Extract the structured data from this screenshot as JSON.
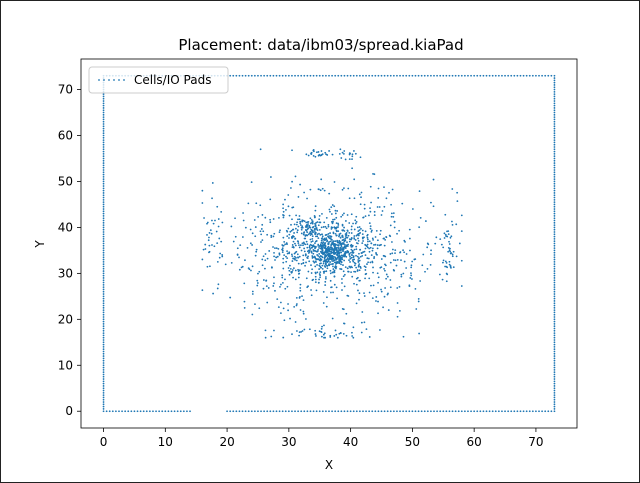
{
  "chart_data": {
    "type": "scatter",
    "title": "Placement: data/ibm03/spread.kiaPad",
    "xlabel": "X",
    "ylabel": "Y",
    "xlim": [
      -3.65,
      76.65
    ],
    "ylim": [
      -3.65,
      76.65
    ],
    "xticks": [
      0,
      10,
      20,
      30,
      40,
      50,
      60,
      70
    ],
    "yticks": [
      0,
      10,
      20,
      30,
      40,
      50,
      60,
      70
    ],
    "grid": false,
    "legend_position": "upper-left",
    "series": [
      {
        "name": "Cells/IO Pads",
        "color": "#1f77b4",
        "io_pad_boundary": {
          "x_min": 0,
          "x_max": 73,
          "y_min": 0,
          "y_max": 73,
          "pitch": 0.5,
          "bottom_gaps": [
            [
              14.5,
              19.5
            ]
          ]
        },
        "cell_clusters": [
          {
            "center": [
              37,
              34.5
            ],
            "spread": [
              1.6,
              1.6
            ],
            "count": 300
          },
          {
            "center": [
              36.5,
              35.5
            ],
            "spread": [
              4.5,
              3.8
            ],
            "count": 450
          },
          {
            "center": [
              37,
              36
            ],
            "spread": [
              8.5,
              8.0
            ],
            "count": 450
          },
          {
            "center": [
              56,
              35
            ],
            "spread": [
              0.6,
              3.5
            ],
            "count": 45
          },
          {
            "center": [
              17.5,
              38
            ],
            "spread": [
              1.0,
              4.0
            ],
            "count": 30
          },
          {
            "center": [
              35,
              56
            ],
            "spread": [
              1.5,
              0.5
            ],
            "count": 25
          },
          {
            "center": [
              40,
              55.5
            ],
            "spread": [
              1.0,
              0.6
            ],
            "count": 15
          },
          {
            "center": [
              36,
              17
            ],
            "spread": [
              4.0,
              0.6
            ],
            "count": 35
          },
          {
            "center": [
              33,
              40
            ],
            "spread": [
              1.2,
              1.0
            ],
            "count": 50
          },
          {
            "center": [
              44,
              32
            ],
            "spread": [
              4.0,
              6.0
            ],
            "count": 80
          },
          {
            "center": [
              27,
              32
            ],
            "spread": [
              4.0,
              7.0
            ],
            "count": 80
          }
        ]
      }
    ]
  }
}
